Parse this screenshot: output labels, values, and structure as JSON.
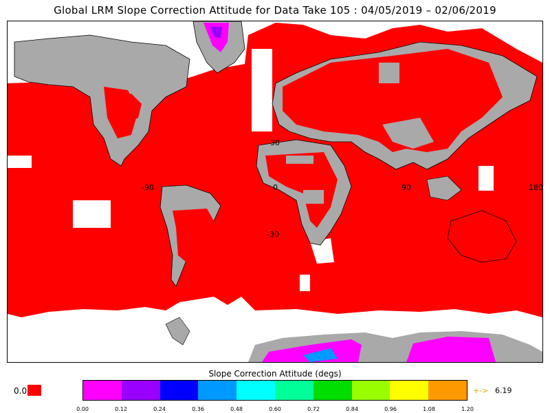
{
  "title": "Global LRM Slope Correction Attitude for Data Take 105 : 04/05/2019 – 02/06/2019",
  "map": {
    "grid_labels": [
      "-90",
      "0",
      "90",
      "180",
      "30",
      "-30"
    ],
    "colors": {
      "ocean_data": "#ff0000",
      "land": "#a9a9a9",
      "no_data": "#ffffff",
      "coast": "#000000",
      "ice_low": "#ff00ff",
      "ice_mid": "#9900ff"
    }
  },
  "colorbar": {
    "title": "Slope Correction Attitude (degs)",
    "zero_label": "0.0",
    "zero_color": "#ff0000",
    "segments": [
      "#ff00ff",
      "#9900ff",
      "#0000ff",
      "#0099ff",
      "#00ffff",
      "#00ff99",
      "#00dd00",
      "#99ff00",
      "#ffff00",
      "#ff9900"
    ],
    "ticks": [
      "0.00",
      "0.12",
      "0.24",
      "0.36",
      "0.48",
      "0.60",
      "0.72",
      "0.84",
      "0.96",
      "1.08",
      "1.20"
    ],
    "overflow_arrow": "+->",
    "overflow_arrow_color": "#f0a000",
    "overflow_value": "6.19"
  }
}
